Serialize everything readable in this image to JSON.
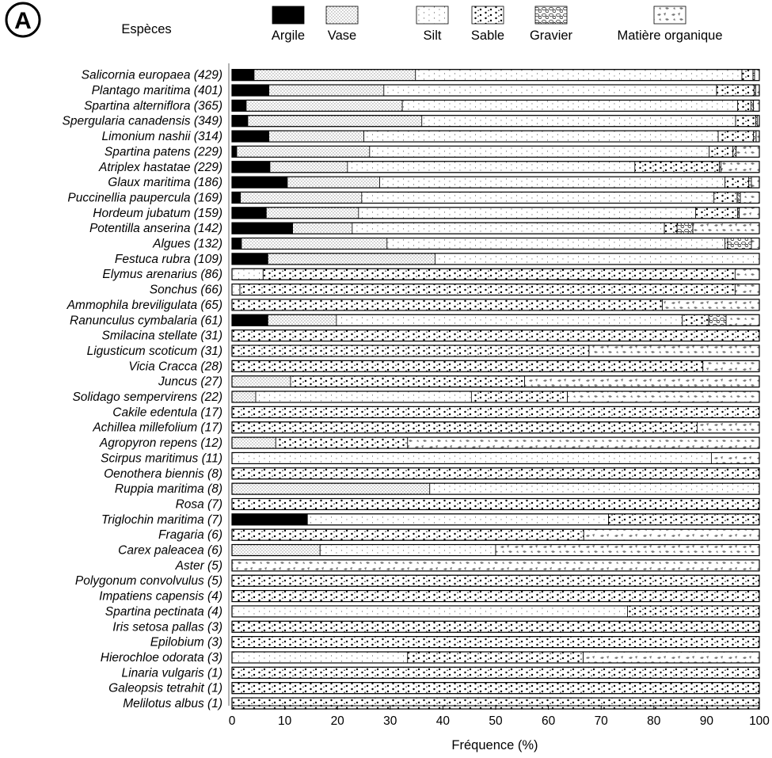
{
  "chart_data": {
    "type": "bar",
    "orientation": "horizontal",
    "stacked": true,
    "panel_label": "A",
    "category_header": "Espèces",
    "xlabel": "Fréquence (%)",
    "xlim": [
      0,
      100
    ],
    "xticks": [
      0,
      10,
      20,
      30,
      40,
      50,
      60,
      70,
      80,
      90,
      100
    ],
    "legend_position": "top",
    "grid": false,
    "series": [
      {
        "name": "Argile",
        "pattern": "solid"
      },
      {
        "name": "Vase",
        "pattern": "fine-dots"
      },
      {
        "name": "Silt",
        "pattern": "sparse-dots"
      },
      {
        "name": "Sable",
        "pattern": "coarse-dots"
      },
      {
        "name": "Gravier",
        "pattern": "pebbles"
      },
      {
        "name": "Matière organique",
        "pattern": "fragments"
      }
    ],
    "categories": [
      {
        "label": "Salicornia europaea (429)",
        "values": [
          4.2,
          30.6,
          61.9,
          2.1,
          0.3,
          0.9
        ]
      },
      {
        "label": "Plantago maritima (401)",
        "values": [
          7.0,
          21.8,
          63.1,
          7.1,
          0.3,
          0.7
        ]
      },
      {
        "label": "Spartina alterniflora (365)",
        "values": [
          2.7,
          29.6,
          63.6,
          2.5,
          0.5,
          1.1
        ]
      },
      {
        "label": "Spergularia canadensis (349)",
        "values": [
          3.0,
          33.0,
          59.5,
          3.8,
          0.3,
          0.4
        ]
      },
      {
        "label": "Limonium nashii (314)",
        "values": [
          7.0,
          18.0,
          67.2,
          6.7,
          0.5,
          0.6
        ]
      },
      {
        "label": "Spartina patens (229)",
        "values": [
          0.9,
          25.2,
          64.4,
          4.5,
          0.6,
          4.4
        ]
      },
      {
        "label": "Atriplex hastatae (229)",
        "values": [
          7.2,
          14.7,
          54.5,
          16.0,
          0.3,
          7.3
        ]
      },
      {
        "label": "Glaux maritima (186)",
        "values": [
          10.5,
          17.5,
          65.5,
          4.5,
          0.5,
          1.5
        ]
      },
      {
        "label": "Puccinellia paupercula (169)",
        "values": [
          1.6,
          23.0,
          66.8,
          4.4,
          0.6,
          3.6
        ]
      },
      {
        "label": "Hordeum jubatum (159)",
        "values": [
          6.5,
          17.5,
          63.9,
          8.0,
          0.3,
          3.8
        ]
      },
      {
        "label": "Potentilla anserina (142)",
        "values": [
          11.5,
          11.3,
          59.2,
          2.4,
          3.0,
          12.6
        ]
      },
      {
        "label": "Algues (132)",
        "values": [
          1.8,
          27.6,
          64.1,
          0.5,
          4.5,
          1.5
        ]
      },
      {
        "label": "Festuca rubra (109)",
        "values": [
          6.8,
          31.7,
          61.5,
          0,
          0,
          0
        ]
      },
      {
        "label": "Elymus arenarius (86)",
        "values": [
          0,
          0,
          5.9,
          89.5,
          0,
          4.6
        ]
      },
      {
        "label": "Sonchus (66)",
        "values": [
          0,
          0,
          1.5,
          93.9,
          0,
          4.6
        ]
      },
      {
        "label": "Ammophila breviligulata (65)",
        "values": [
          0,
          0,
          0,
          81.6,
          0,
          18.4
        ]
      },
      {
        "label": "Ranunculus cymbalaria (61)",
        "values": [
          6.8,
          13.0,
          65.6,
          5.0,
          3.3,
          6.3
        ]
      },
      {
        "label": "Smilacina stellate (31)",
        "values": [
          0,
          0,
          0,
          100,
          0,
          0
        ]
      },
      {
        "label": "Ligusticum scoticum (31)",
        "values": [
          0,
          0,
          0,
          67.7,
          0,
          32.3
        ]
      },
      {
        "label": "Vicia Cracca (28)",
        "values": [
          0,
          0,
          0,
          89.3,
          0,
          10.7
        ]
      },
      {
        "label": "Juncus (27)",
        "values": [
          0,
          11.1,
          0,
          44.4,
          0,
          44.5
        ]
      },
      {
        "label": "Solidago sempervirens (22)",
        "values": [
          0,
          4.5,
          40.9,
          18.2,
          0,
          36.4
        ]
      },
      {
        "label": "Cakile edentula (17)",
        "values": [
          0,
          0,
          0,
          100,
          0,
          0
        ]
      },
      {
        "label": "Achillea millefolium (17)",
        "values": [
          0,
          0,
          0,
          88.2,
          0,
          11.8
        ]
      },
      {
        "label": "Agropyron repens (12)",
        "values": [
          0,
          8.3,
          0,
          25.0,
          0,
          66.7
        ]
      },
      {
        "label": "Scirpus maritimus (11)",
        "values": [
          0,
          0,
          90.9,
          0,
          0,
          9.1
        ]
      },
      {
        "label": "Oenothera biennis (8)",
        "values": [
          0,
          0,
          0,
          100,
          0,
          0
        ]
      },
      {
        "label": "Ruppia maritima (8)",
        "values": [
          0,
          37.5,
          62.5,
          0,
          0,
          0
        ]
      },
      {
        "label": "Rosa (7)",
        "values": [
          0,
          0,
          0,
          100,
          0,
          0
        ]
      },
      {
        "label": "Triglochin maritima (7)",
        "values": [
          14.3,
          0,
          57.1,
          28.6,
          0,
          0
        ]
      },
      {
        "label": "Fragaria (6)",
        "values": [
          0,
          0,
          0,
          66.7,
          0,
          33.3
        ]
      },
      {
        "label": "Carex paleacea (6)",
        "values": [
          0,
          16.7,
          33.3,
          0,
          0,
          50.0
        ]
      },
      {
        "label": "Aster (5)",
        "values": [
          0,
          0,
          0,
          0,
          0,
          100
        ]
      },
      {
        "label": "Polygonum convolvulus (5)",
        "values": [
          0,
          0,
          0,
          100,
          0,
          0
        ]
      },
      {
        "label": "Impatiens capensis (4)",
        "values": [
          0,
          0,
          0,
          100,
          0,
          0
        ]
      },
      {
        "label": "Spartina pectinata (4)",
        "values": [
          0,
          0,
          75.0,
          25.0,
          0,
          0
        ]
      },
      {
        "label": "Iris setosa pallas (3)",
        "values": [
          0,
          0,
          0,
          100,
          0,
          0
        ]
      },
      {
        "label": "Epilobium (3)",
        "values": [
          0,
          0,
          0,
          100,
          0,
          0
        ]
      },
      {
        "label": "Hierochloe odorata (3)",
        "values": [
          0,
          0,
          33.3,
          33.3,
          0,
          33.4
        ]
      },
      {
        "label": "Linaria vulgaris (1)",
        "values": [
          0,
          0,
          0,
          100,
          0,
          0
        ]
      },
      {
        "label": "Galeopsis tetrahit (1)",
        "values": [
          0,
          0,
          0,
          100,
          0,
          0
        ]
      },
      {
        "label": "Melilotus albus (1)",
        "values": [
          0,
          0,
          0,
          100,
          0,
          0
        ]
      }
    ]
  }
}
